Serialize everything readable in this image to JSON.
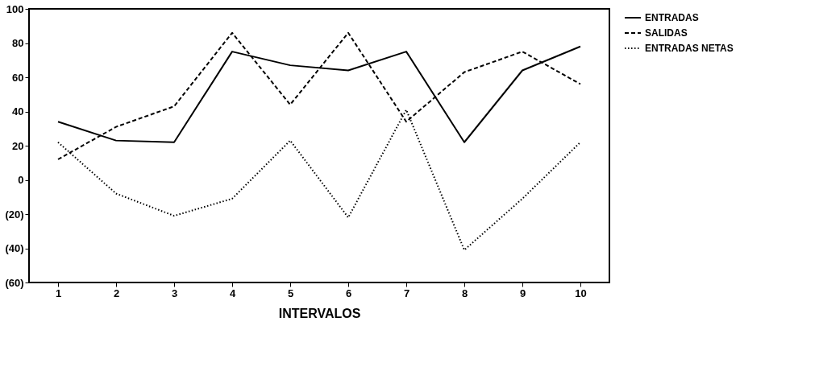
{
  "chart_data": {
    "type": "line",
    "xlabel": "INTERVALOS",
    "categories": [
      "1",
      "2",
      "3",
      "4",
      "5",
      "6",
      "7",
      "8",
      "9",
      "10"
    ],
    "ylim": [
      -60,
      100
    ],
    "yticks": [
      {
        "value": -60,
        "label": "(60)"
      },
      {
        "value": -40,
        "label": "(40)"
      },
      {
        "value": -20,
        "label": "(20)"
      },
      0,
      20,
      40,
      60,
      80,
      100
    ],
    "grid": false,
    "legend": "top right",
    "marker": "none",
    "series": [
      {
        "name": "ENTRADAS",
        "color": "#000000",
        "line_style": "solid",
        "values": [
          34,
          23,
          22,
          75,
          67,
          64,
          75,
          22,
          64,
          78
        ]
      },
      {
        "name": "SALIDAS",
        "color": "#000000",
        "line_style": "dashed",
        "values": [
          12,
          31,
          43,
          86,
          44,
          86,
          34,
          63,
          75,
          56
        ]
      },
      {
        "name": "ENTRADAS NETAS",
        "color": "#000000",
        "line_style": "dotted",
        "values": [
          22,
          -8,
          -21,
          -11,
          23,
          -22,
          41,
          -41,
          -11,
          22
        ]
      }
    ]
  }
}
